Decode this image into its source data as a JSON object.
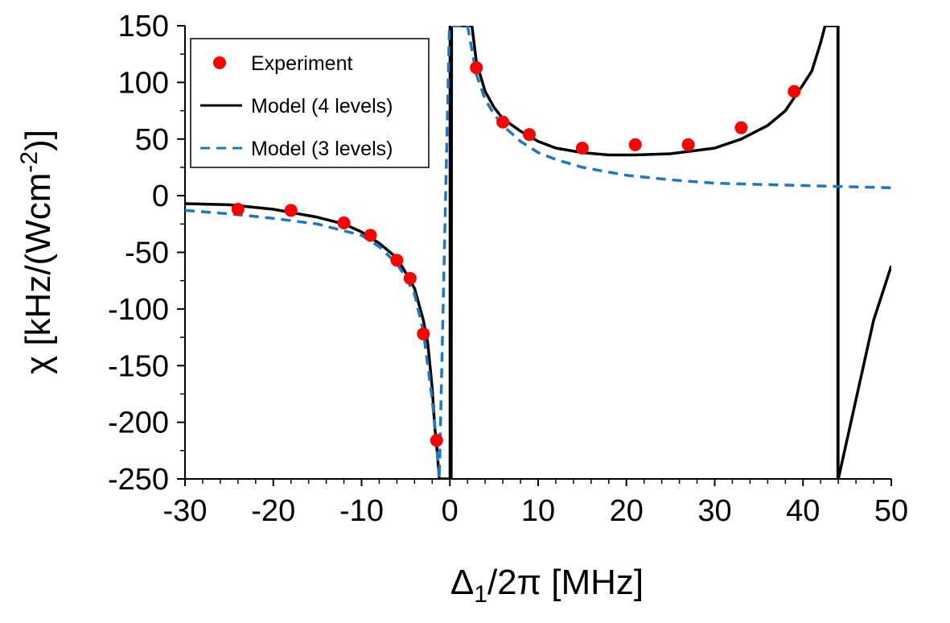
{
  "chart_data": {
    "type": "scatter",
    "title": "",
    "xlabel": {
      "main": "Δ",
      "sub": "1",
      "rest": "/2π [MHz]"
    },
    "ylabel": {
      "main": "χ [kHz/(Wcm",
      "sup": "-2",
      "rest": ")]"
    },
    "xlim": [
      -30,
      50
    ],
    "ylim": [
      -250,
      150
    ],
    "x_ticks": [
      "-30",
      "-20",
      "-10",
      "0",
      "10",
      "20",
      "30",
      "40",
      "50"
    ],
    "y_ticks": [
      "150",
      "100",
      "50",
      "0",
      "-50",
      "-100",
      "-150",
      "-200",
      "-250"
    ],
    "grid": false,
    "legend_position": "top-left",
    "series": [
      {
        "name": "Experiment",
        "kind": "points",
        "color": "#ff0000",
        "x": [
          -24,
          -18,
          -12,
          -9,
          -6,
          -4.5,
          -3,
          -1.5,
          3,
          6,
          9,
          15,
          21,
          27,
          33,
          39
        ],
        "y": [
          -12,
          -13,
          -24,
          -35,
          -57,
          -73,
          -122,
          -216,
          113,
          65,
          54,
          42,
          45,
          45,
          60,
          92
        ]
      },
      {
        "name": "Model (4 levels)",
        "kind": "line",
        "color": "#000000",
        "dash": "solid",
        "x": [
          -30,
          -25,
          -20,
          -15,
          -12,
          -10,
          -8,
          -6,
          -5,
          -4,
          -3,
          -2.5,
          -2,
          -1.7,
          -1.5,
          -1.3,
          -1.2,
          0.15,
          0.2,
          0.3,
          0.5,
          1.5,
          2.5,
          3,
          4,
          5,
          6,
          8,
          10,
          12,
          15,
          18,
          21,
          25,
          30,
          33,
          36,
          38,
          40,
          41,
          42,
          42.5,
          43,
          43.95,
          43.95,
          44,
          44,
          46,
          48,
          50
        ],
        "y": [
          -7,
          -8,
          -12,
          -19,
          -25,
          -32,
          -42,
          -55,
          -68,
          -82,
          -110,
          -130,
          -170,
          -205,
          -220,
          -240,
          -250,
          -250,
          150,
          150,
          150,
          150,
          150,
          118,
          92,
          78,
          68,
          57,
          48,
          42,
          38,
          36,
          36,
          37,
          42,
          50,
          62,
          75,
          98,
          110,
          135,
          150,
          150,
          150,
          -250,
          -250,
          -250,
          -180,
          -110,
          -62
        ]
      },
      {
        "name": "Model (3 levels)",
        "kind": "line",
        "color": "#1f77c4",
        "dash": "dashed",
        "x": [
          -30,
          -25,
          -20,
          -15,
          -10,
          -8,
          -6,
          -5,
          -4,
          -3,
          -2,
          -1.5,
          -1.2,
          -0.05,
          0.05,
          0.1,
          0.2,
          0.4,
          1,
          2,
          3,
          4,
          5,
          6,
          8,
          10,
          12,
          15,
          20,
          25,
          30,
          35,
          40,
          45,
          50
        ],
        "y": [
          -13,
          -16,
          -20,
          -25,
          -35,
          -45,
          -60,
          -72,
          -87,
          -120,
          -180,
          -220,
          -250,
          150,
          150,
          150,
          150,
          150,
          150,
          150,
          107,
          85,
          72,
          62,
          48,
          38,
          32,
          25,
          18,
          14,
          11,
          10,
          9,
          8,
          7
        ]
      }
    ],
    "vertical_lines": [
      {
        "x": 0,
        "color": "#000000"
      },
      {
        "x": 44,
        "color": "#000000"
      }
    ]
  }
}
